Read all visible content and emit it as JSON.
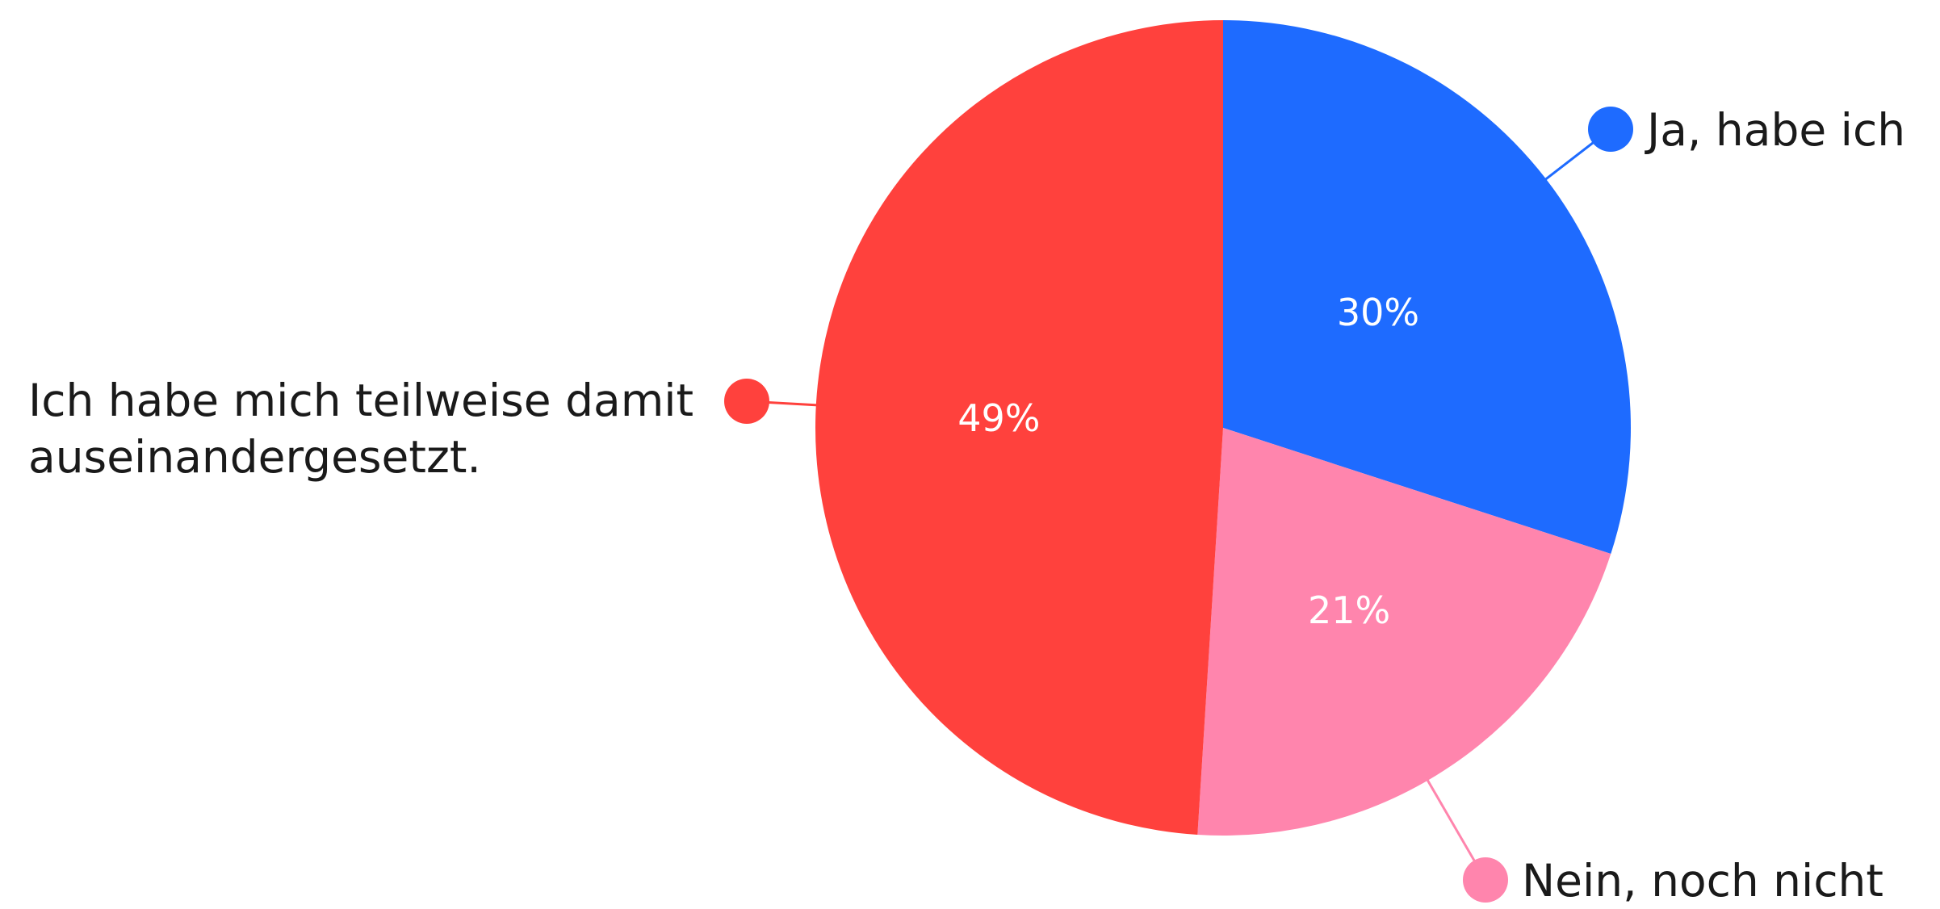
{
  "chart_data": {
    "type": "pie",
    "title": "",
    "slices": [
      {
        "label": "Ja, habe ich",
        "value": 30,
        "display": "30%",
        "color": "#1E6BFF"
      },
      {
        "label": "Nein, noch nicht",
        "value": 21,
        "display": "21%",
        "color": "#FF85AD"
      },
      {
        "label": "Ich habe mich teilweise damit auseinandergesetzt.",
        "value": 49,
        "display": "49%",
        "color": "#FF413D"
      }
    ],
    "legend_placement": "outside, connected to slices by leader lines"
  }
}
